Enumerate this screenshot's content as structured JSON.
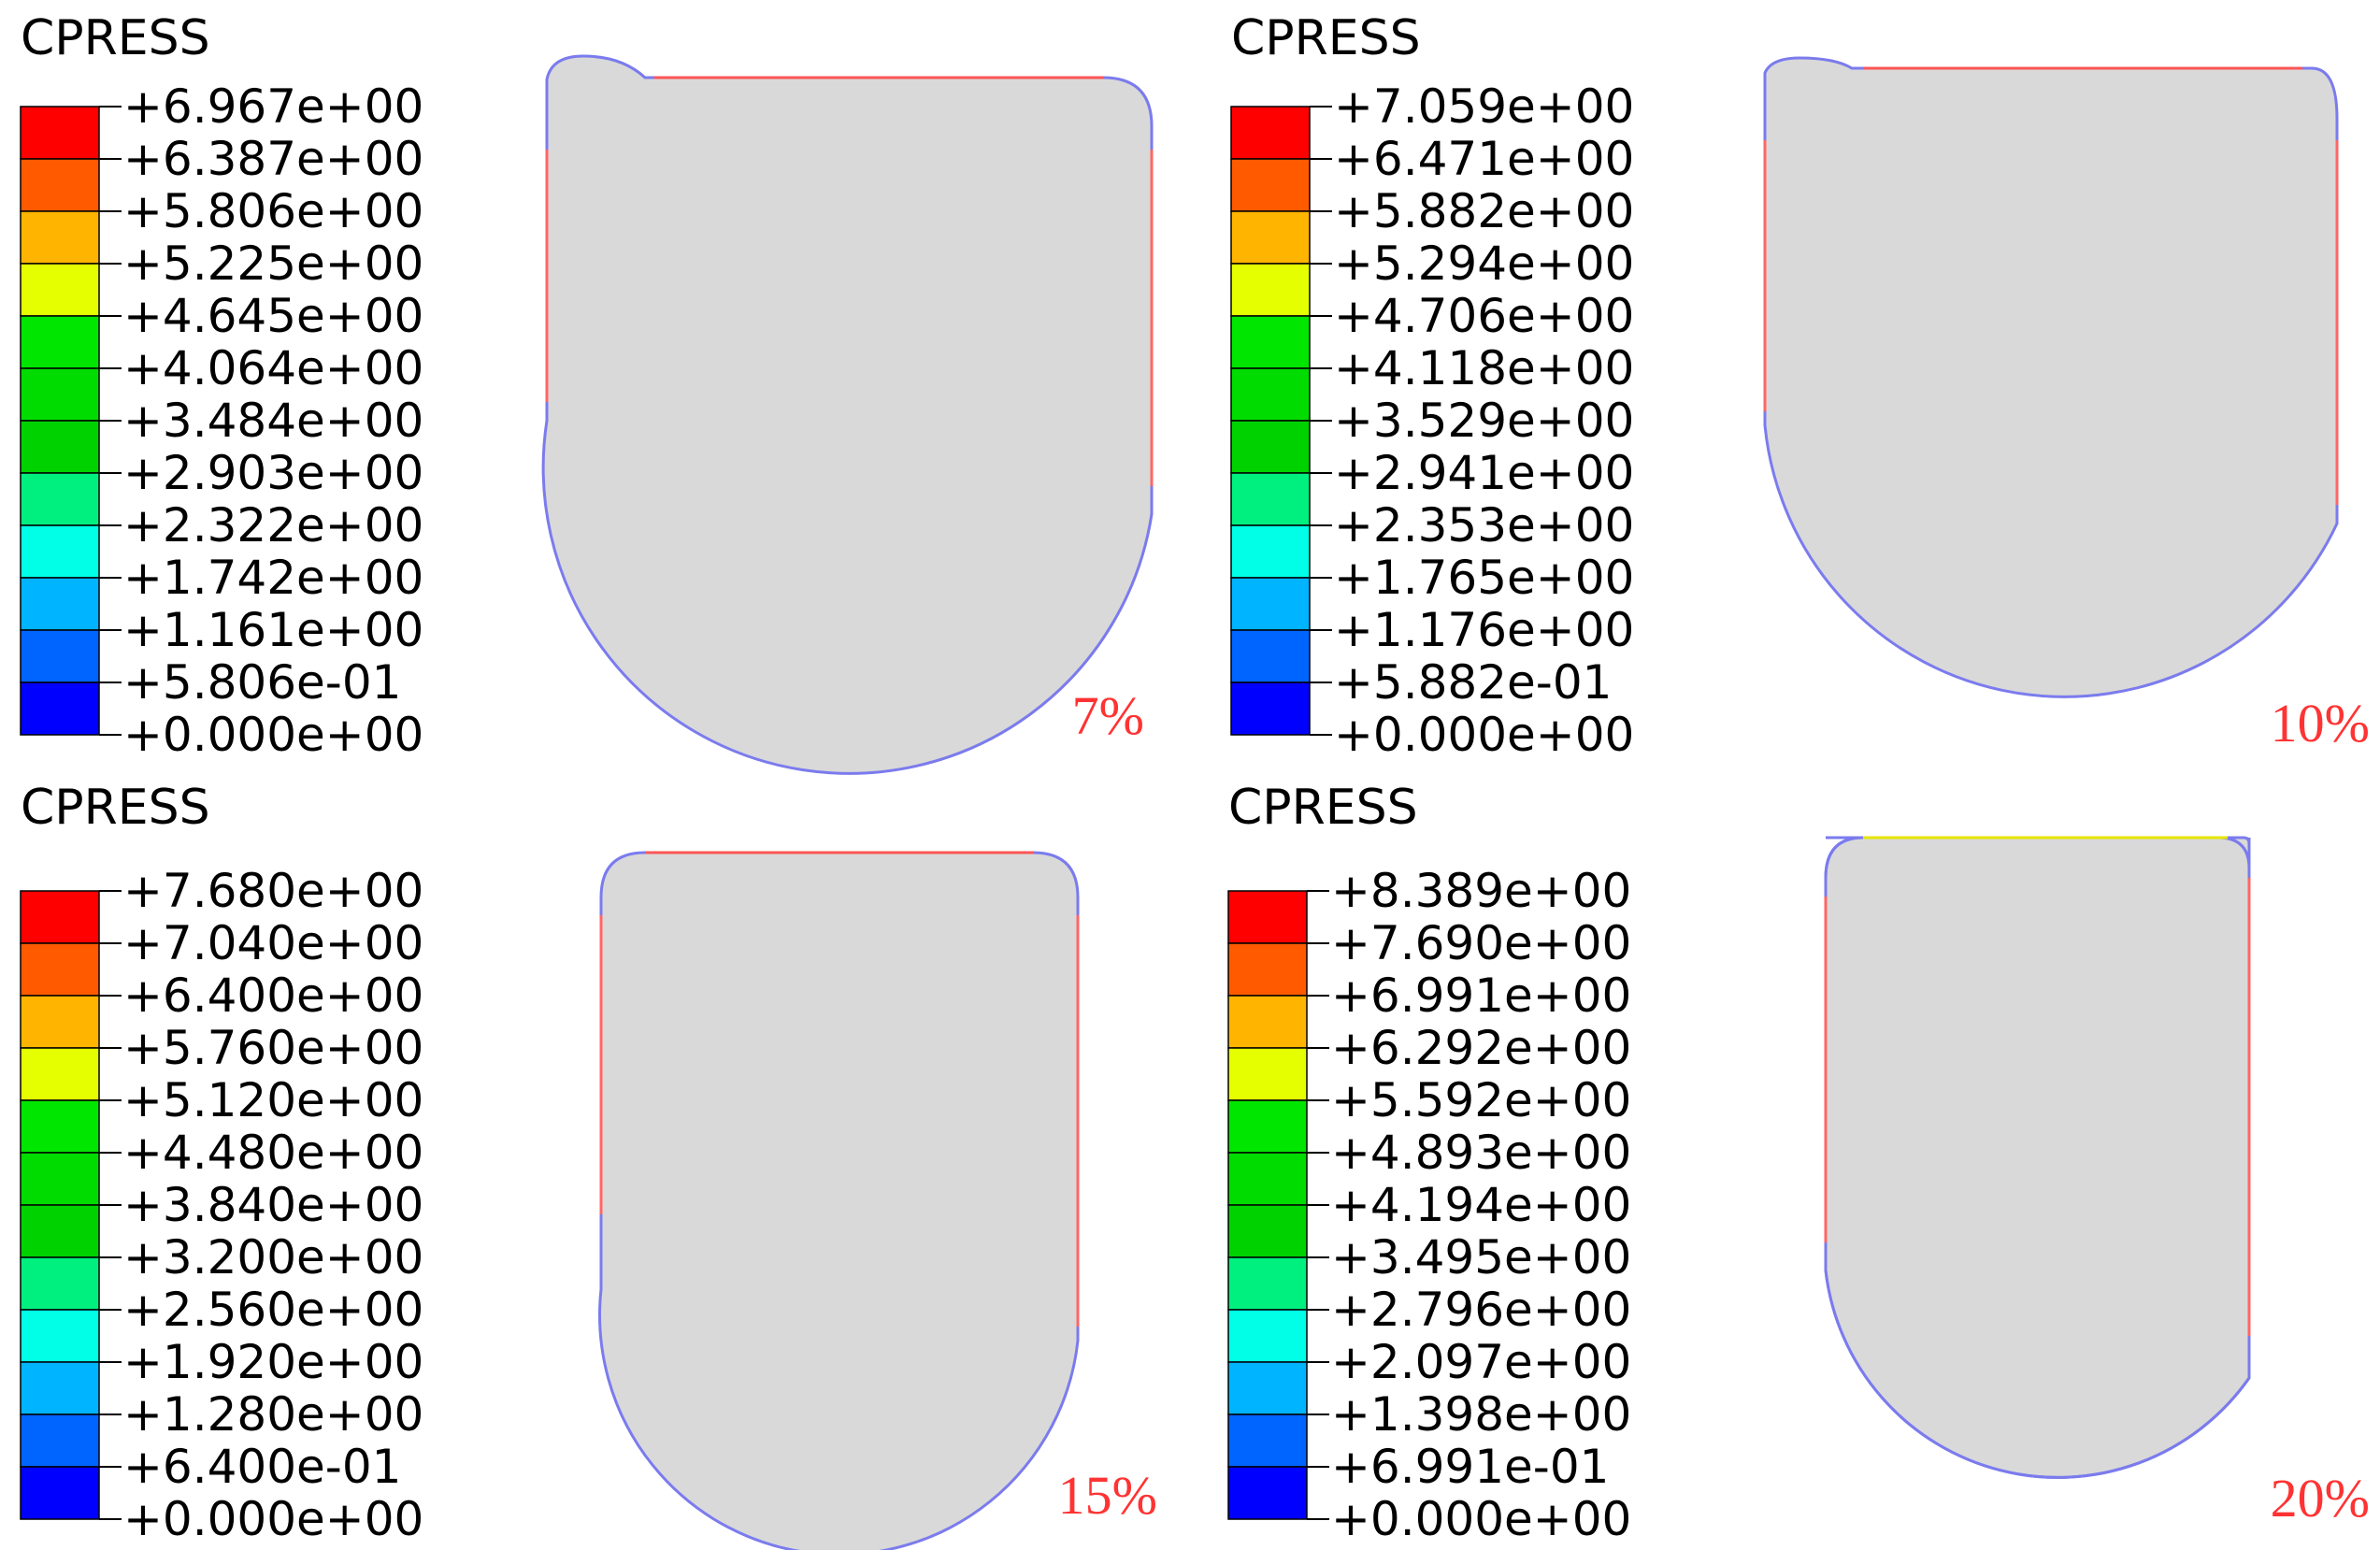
{
  "colormap": [
    "#ff0000",
    "#ff5a00",
    "#ffb400",
    "#e6ff00",
    "#00e600",
    "#00dc00",
    "#00d200",
    "#00f07f",
    "#00ffe6",
    "#00b4ff",
    "#0064ff",
    "#0000ff"
  ],
  "outline_colors": {
    "top_edge": "#ff5555",
    "side_edge": "#ff6666",
    "round_edge": "#7b7bee",
    "body_fill": "#d9d9d9"
  },
  "panels": [
    {
      "title": "CPRESS",
      "percent": "7%",
      "labels": [
        "+6.967e+00",
        "+6.387e+00",
        "+5.806e+00",
        "+5.225e+00",
        "+4.645e+00",
        "+4.064e+00",
        "+3.484e+00",
        "+2.903e+00",
        "+2.322e+00",
        "+1.742e+00",
        "+1.161e+00",
        "+5.806e-01",
        "+0.000e+00"
      ]
    },
    {
      "title": "CPRESS",
      "percent": "10%",
      "labels": [
        "+7.059e+00",
        "+6.471e+00",
        "+5.882e+00",
        "+5.294e+00",
        "+4.706e+00",
        "+4.118e+00",
        "+3.529e+00",
        "+2.941e+00",
        "+2.353e+00",
        "+1.765e+00",
        "+1.176e+00",
        "+5.882e-01",
        "+0.000e+00"
      ]
    },
    {
      "title": "CPRESS",
      "percent": "15%",
      "labels": [
        "+7.680e+00",
        "+7.040e+00",
        "+6.400e+00",
        "+5.760e+00",
        "+5.120e+00",
        "+4.480e+00",
        "+3.840e+00",
        "+3.200e+00",
        "+2.560e+00",
        "+1.920e+00",
        "+1.280e+00",
        "+6.400e-01",
        "+0.000e+00"
      ]
    },
    {
      "title": "CPRESS",
      "percent": "20%",
      "labels": [
        "+8.389e+00",
        "+7.690e+00",
        "+6.991e+00",
        "+6.292e+00",
        "+5.592e+00",
        "+4.893e+00",
        "+4.194e+00",
        "+3.495e+00",
        "+2.796e+00",
        "+2.097e+00",
        "+1.398e+00",
        "+6.991e-01",
        "+0.000e+00"
      ]
    }
  ]
}
